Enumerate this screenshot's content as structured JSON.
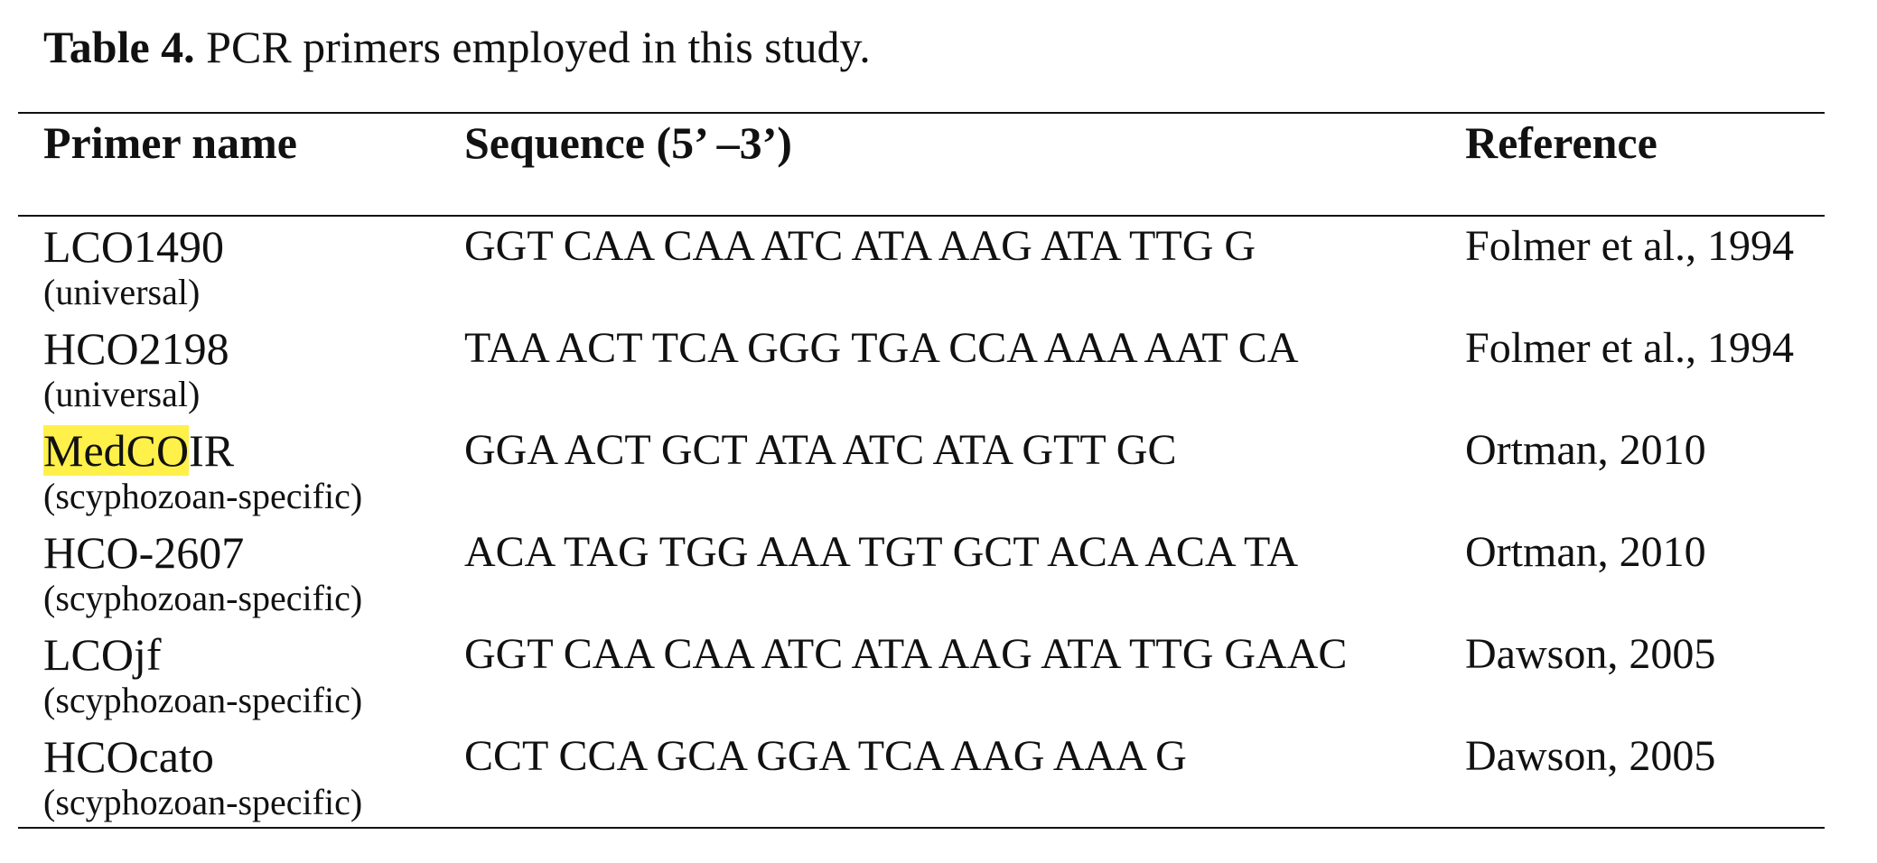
{
  "caption": {
    "label": "Table 4.",
    "text": " PCR primers employed in this study."
  },
  "table": {
    "headers": [
      "Primer name",
      "Sequence (5’ –3’)",
      "Reference"
    ],
    "rows": [
      {
        "name": "LCO1490",
        "name_highlight": "",
        "name_rest": "LCO1490",
        "specificity": "(universal)",
        "sequence": "GGT CAA CAA ATC ATA AAG ATA TTG G",
        "reference": "Folmer et al., 1994"
      },
      {
        "name": "HCO2198",
        "name_highlight": "",
        "name_rest": "HCO2198",
        "specificity": "(universal)",
        "sequence": "TAA ACT TCA GGG TGA CCA AAA AAT CA",
        "reference": "Folmer et al., 1994"
      },
      {
        "name": "MedCOIR",
        "name_highlight": "MedCO",
        "name_rest": "IR",
        "specificity": "(scyphozoan-specific)",
        "sequence": "GGA ACT GCT ATA ATC ATA GTT GC",
        "reference": "Ortman, 2010"
      },
      {
        "name": "HCO-2607",
        "name_highlight": "",
        "name_rest": "HCO-2607",
        "specificity": "(scyphozoan-specific)",
        "sequence": "ACA TAG TGG AAA TGT GCT ACA ACA TA",
        "reference": "Ortman, 2010"
      },
      {
        "name": "LCOjf",
        "name_highlight": "",
        "name_rest": "LCOjf",
        "specificity": "(scyphozoan-specific)",
        "sequence": "GGT CAA CAA ATC ATA AAG ATA TTG GAAC",
        "reference": "Dawson, 2005"
      },
      {
        "name": "HCOcato",
        "name_highlight": "",
        "name_rest": "HCOcato",
        "specificity": "(scyphozoan-specific)",
        "sequence": "CCT CCA GCA GGA TCA AAG AAA G",
        "reference": "Dawson, 2005"
      }
    ]
  },
  "colors": {
    "highlight": "#fff04a",
    "text": "#111111",
    "rule": "#111111"
  }
}
